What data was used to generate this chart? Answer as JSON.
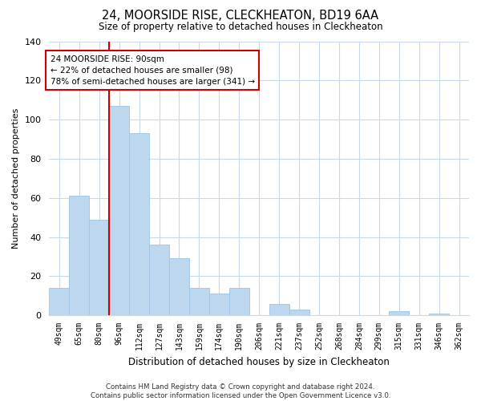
{
  "title": "24, MOORSIDE RISE, CLECKHEATON, BD19 6AA",
  "subtitle": "Size of property relative to detached houses in Cleckheaton",
  "xlabel": "Distribution of detached houses by size in Cleckheaton",
  "ylabel": "Number of detached properties",
  "categories": [
    "49sqm",
    "65sqm",
    "80sqm",
    "96sqm",
    "112sqm",
    "127sqm",
    "143sqm",
    "159sqm",
    "174sqm",
    "190sqm",
    "206sqm",
    "221sqm",
    "237sqm",
    "252sqm",
    "268sqm",
    "284sqm",
    "299sqm",
    "315sqm",
    "331sqm",
    "346sqm",
    "362sqm"
  ],
  "values": [
    14,
    61,
    49,
    107,
    93,
    36,
    29,
    14,
    11,
    14,
    0,
    6,
    3,
    0,
    0,
    0,
    0,
    2,
    0,
    1,
    0
  ],
  "bar_color": "#bdd7ee",
  "bar_edge_color": "#9dc3e6",
  "vline_color": "#cc0000",
  "annotation_line1": "24 MOORSIDE RISE: 90sqm",
  "annotation_line2": "← 22% of detached houses are smaller (98)",
  "annotation_line3": "78% of semi-detached houses are larger (341) →",
  "annotation_box_color": "#ffffff",
  "annotation_box_edge": "#cc0000",
  "ylim": [
    0,
    140
  ],
  "yticks": [
    0,
    20,
    40,
    60,
    80,
    100,
    120,
    140
  ],
  "footer": "Contains HM Land Registry data © Crown copyright and database right 2024.\nContains public sector information licensed under the Open Government Licence v3.0.",
  "bg_color": "#ffffff",
  "grid_color": "#c8daea"
}
